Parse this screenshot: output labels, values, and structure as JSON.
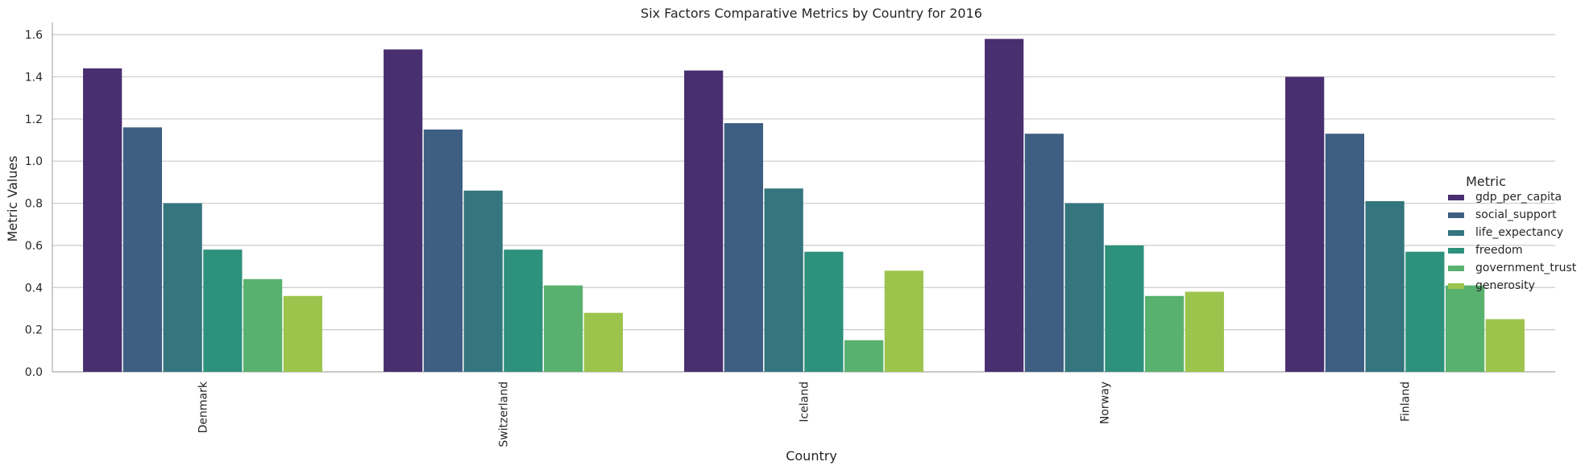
{
  "chart_data": {
    "type": "bar",
    "title": "Six Factors Comparative Metrics by Country for 2016",
    "xlabel": "Country",
    "ylabel": "Metric Values",
    "ylim": [
      0,
      1.65
    ],
    "yticks": [
      "0.0",
      "0.2",
      "0.4",
      "0.6",
      "0.8",
      "1.0",
      "1.2",
      "1.4",
      "1.6"
    ],
    "grid": true,
    "legend_title": "Metric",
    "legend_position": "right",
    "categories": [
      "Denmark",
      "Switzerland",
      "Iceland",
      "Norway",
      "Finland"
    ],
    "series": [
      {
        "name": "gdp_per_capita",
        "color": "#482f70",
        "values": [
          1.44,
          1.53,
          1.43,
          1.58,
          1.4
        ]
      },
      {
        "name": "social_support",
        "color": "#3e5f82",
        "values": [
          1.16,
          1.15,
          1.18,
          1.13,
          1.13
        ]
      },
      {
        "name": "life_expectancy",
        "color": "#34757e",
        "values": [
          0.8,
          0.86,
          0.87,
          0.8,
          0.81
        ]
      },
      {
        "name": "freedom",
        "color": "#2e917c",
        "values": [
          0.58,
          0.58,
          0.57,
          0.6,
          0.57
        ]
      },
      {
        "name": "government_trust",
        "color": "#58b16e",
        "values": [
          0.44,
          0.41,
          0.15,
          0.36,
          0.41
        ]
      },
      {
        "name": "generosity",
        "color": "#9cc44c",
        "values": [
          0.36,
          0.28,
          0.48,
          0.38,
          0.25
        ]
      }
    ]
  }
}
